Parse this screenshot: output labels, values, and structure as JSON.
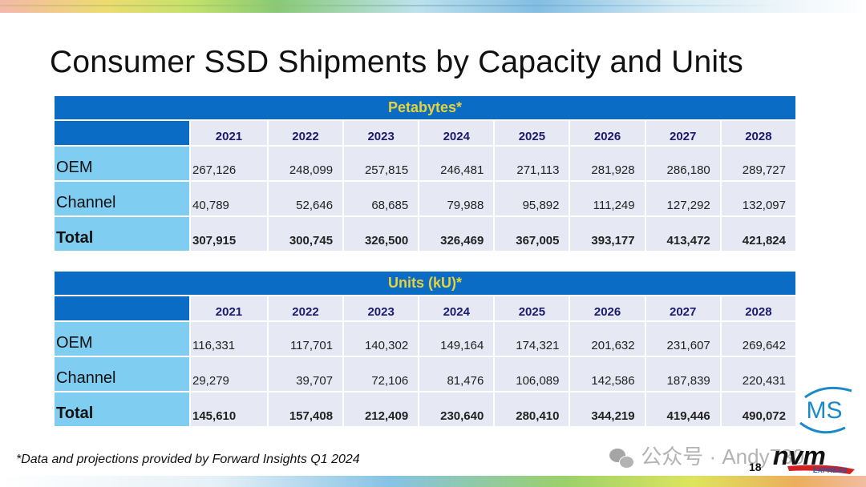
{
  "slide": {
    "title": "Consumer SSD Shipments by Capacity and Units",
    "footnote": "*Data and projections provided by Forward Insights Q1 2024",
    "page_number": "18",
    "watermark": "公众号 · Andy730",
    "logos": {
      "ms": "MS",
      "nvm": "nvm",
      "express": "EXPRESS"
    }
  },
  "tables": [
    {
      "banner": "Petabytes*",
      "years": [
        "2021",
        "2022",
        "2023",
        "2024",
        "2025",
        "2026",
        "2027",
        "2028"
      ],
      "rows": [
        {
          "label": "OEM",
          "values": [
            "267,126",
            "248,099",
            "257,815",
            "246,481",
            "271,113",
            "281,928",
            "286,180",
            "289,727"
          ]
        },
        {
          "label": "Channel",
          "values": [
            "40,789",
            "52,646",
            "68,685",
            "79,988",
            "95,892",
            "111,249",
            "127,292",
            "132,097"
          ]
        },
        {
          "label": "Total",
          "values": [
            "307,915",
            "300,745",
            "326,500",
            "326,469",
            "367,005",
            "393,177",
            "413,472",
            "421,824"
          ]
        }
      ]
    },
    {
      "banner": "Units (kU)*",
      "years": [
        "2021",
        "2022",
        "2023",
        "2024",
        "2025",
        "2026",
        "2027",
        "2028"
      ],
      "rows": [
        {
          "label": "OEM",
          "values": [
            "116,331",
            "117,701",
            "140,302",
            "149,164",
            "174,321",
            "201,632",
            "231,607",
            "269,642"
          ]
        },
        {
          "label": "Channel",
          "values": [
            "29,279",
            "39,707",
            "72,106",
            "81,476",
            "106,089",
            "142,586",
            "187,839",
            "220,431"
          ]
        },
        {
          "label": "Total",
          "values": [
            "145,610",
            "157,408",
            "212,409",
            "230,640",
            "280,410",
            "344,219",
            "419,446",
            "490,072"
          ]
        }
      ]
    }
  ],
  "colors": {
    "banner_bg": "#0a6cc4",
    "banner_text": "#e6d23a",
    "row_label_bg": "#7fcdf0",
    "cell_bg": "#e6e8f4",
    "year_text": "#1a1a6e"
  }
}
